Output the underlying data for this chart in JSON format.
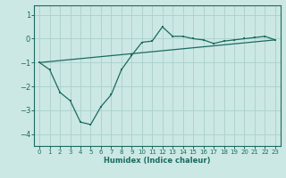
{
  "xlabel": "Humidex (Indice chaleur)",
  "bg_color": "#cce8e4",
  "line_color": "#1a6b60",
  "grid_color": "#aacfcb",
  "xlim": [
    -0.5,
    23.5
  ],
  "ylim": [
    -4.5,
    1.4
  ],
  "xticks": [
    0,
    1,
    2,
    3,
    4,
    5,
    6,
    7,
    8,
    9,
    10,
    11,
    12,
    13,
    14,
    15,
    16,
    17,
    18,
    19,
    20,
    21,
    22,
    23
  ],
  "yticks": [
    -4,
    -3,
    -2,
    -1,
    0,
    1
  ],
  "line1_x": [
    0,
    1,
    2,
    3,
    4,
    5,
    6,
    7,
    8,
    9,
    10,
    11,
    12,
    13,
    14,
    15,
    16,
    17,
    18,
    19,
    20,
    21,
    22,
    23
  ],
  "line1_y": [
    -1.0,
    -1.3,
    -2.25,
    -2.6,
    -3.5,
    -3.6,
    -2.85,
    -2.35,
    -1.3,
    -0.7,
    -0.15,
    -0.1,
    0.5,
    0.1,
    0.1,
    0.0,
    -0.05,
    -0.2,
    -0.1,
    -0.05,
    0.0,
    0.05,
    0.1,
    -0.05
  ],
  "line2_x": [
    0,
    23
  ],
  "line2_y": [
    -1.0,
    -0.05
  ],
  "tick_fontsize": 5,
  "xlabel_fontsize": 6
}
